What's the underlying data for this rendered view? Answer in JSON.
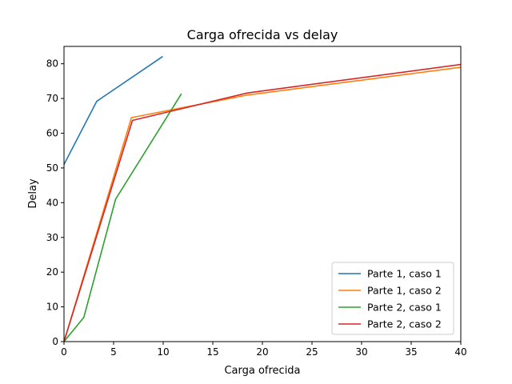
{
  "chart_data": {
    "type": "line",
    "title": "Carga ofrecida vs delay",
    "xlabel": "Carga ofrecida",
    "ylabel": "Delay",
    "xlim": [
      0,
      40
    ],
    "ylim": [
      0,
      85
    ],
    "xticks": [
      0,
      5,
      10,
      15,
      20,
      25,
      30,
      35,
      40
    ],
    "yticks": [
      0,
      10,
      20,
      30,
      40,
      50,
      60,
      70,
      80
    ],
    "grid": false,
    "legend_position": "bottom-right",
    "series": [
      {
        "name": "Parte 1, caso 1",
        "color": "#1f77b4",
        "x": [
          0,
          3.3,
          9.9
        ],
        "y": [
          51,
          69.2,
          82
        ]
      },
      {
        "name": "Parte 1, caso 2",
        "color": "#ff7f0e",
        "x": [
          0,
          6.8,
          18.5,
          40
        ],
        "y": [
          0,
          64.5,
          71,
          79
        ]
      },
      {
        "name": "Parte 2, caso 1",
        "color": "#2ca02c",
        "x": [
          0,
          2.0,
          5.2,
          11.8
        ],
        "y": [
          0,
          7,
          41,
          71.2
        ]
      },
      {
        "name": "Parte 2, caso 2",
        "color": "#d62728",
        "x": [
          0,
          6.9,
          18.5,
          40
        ],
        "y": [
          0,
          63.7,
          71.6,
          79.8
        ]
      }
    ]
  }
}
